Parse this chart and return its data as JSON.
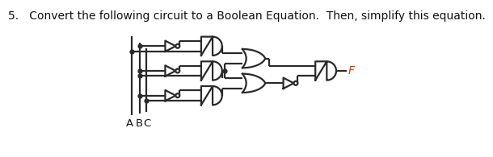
{
  "title": "5.   Convert the following circuit to a Boolean Equation.  Then, simplify this equation.",
  "bg_color": "#ffffff",
  "line_color": "#2a2a2a",
  "line_width": 1.6
}
